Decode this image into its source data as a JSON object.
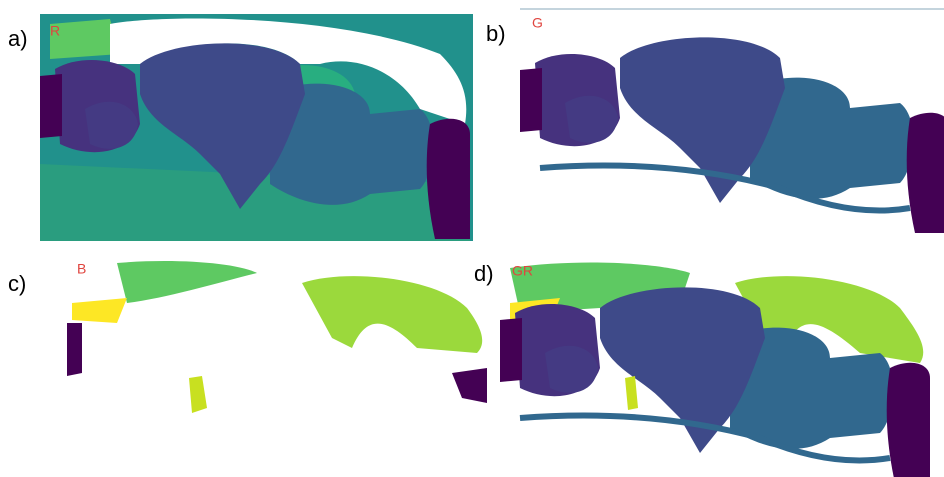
{
  "panels": [
    {
      "label": "a)",
      "image_label": "R"
    },
    {
      "label": "b)",
      "image_label": "G"
    },
    {
      "label": "c)",
      "image_label": "B"
    },
    {
      "label": "d)",
      "image_label": "GR"
    }
  ]
}
